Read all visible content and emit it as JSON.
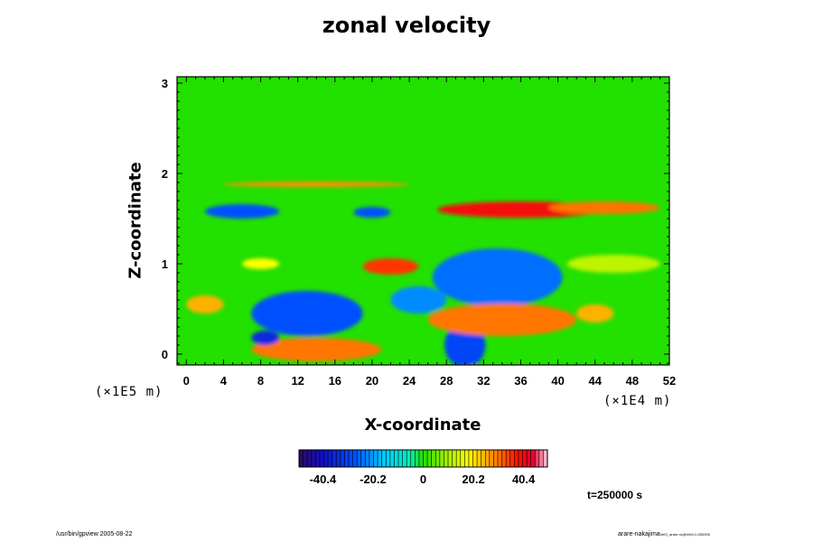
{
  "chart_data": {
    "type": "heatmap",
    "title": "zonal velocity",
    "xlabel": "X-coordinate",
    "ylabel": "Z-coordinate",
    "x_ticks": [
      "0",
      "4",
      "8",
      "12",
      "16",
      "20",
      "24",
      "28",
      "32",
      "36",
      "40",
      "44",
      "48",
      "52"
    ],
    "y_ticks": [
      "0",
      "1",
      "2",
      "3"
    ],
    "xlim": [
      -1,
      52
    ],
    "ylim": [
      -0.12,
      3.07
    ],
    "x_scale_note": "(×1E4 m)",
    "y_scale_note": "(×1E5 m)",
    "colorbar": {
      "min": -50,
      "max": 50,
      "tick_labels": [
        "-40.4",
        "-20.2",
        "0",
        "20.2",
        "40.4"
      ],
      "tick_values": [
        -40.4,
        -20.2,
        0,
        20.2,
        40.4
      ]
    },
    "features": [
      {
        "x": 14,
        "z": 0.02,
        "rx": 5,
        "rz": 0.07,
        "value": 55
      },
      {
        "x": 14,
        "z": 0.05,
        "rx": 7,
        "rz": 0.13,
        "value": 30
      },
      {
        "x": 33.5,
        "z": 0.82,
        "rx": 3.5,
        "rz": 0.18,
        "value": -55
      },
      {
        "x": 33.5,
        "z": 0.85,
        "rx": 7,
        "rz": 0.32,
        "value": -25
      },
      {
        "x": 30.2,
        "z": -0.05,
        "rx": 1.1,
        "rz": 0.14,
        "value": -55
      },
      {
        "x": 30,
        "z": 0.1,
        "rx": 2.2,
        "rz": 0.25,
        "value": -30
      },
      {
        "x": 34,
        "z": 0.35,
        "rx": 6,
        "rz": 0.1,
        "value": 50
      },
      {
        "x": 34,
        "z": 0.38,
        "rx": 8,
        "rz": 0.18,
        "value": 30
      },
      {
        "x": 36,
        "z": 1.6,
        "rx": 9,
        "rz": 0.09,
        "value": 40
      },
      {
        "x": 45,
        "z": 1.62,
        "rx": 6,
        "rz": 0.07,
        "value": 30
      },
      {
        "x": 22,
        "z": 0.97,
        "rx": 3,
        "rz": 0.09,
        "value": 35
      },
      {
        "x": 13,
        "z": 0.45,
        "rx": 6,
        "rz": 0.25,
        "value": -28
      },
      {
        "x": 8.5,
        "z": 0.18,
        "rx": 1.5,
        "rz": 0.08,
        "value": -35
      },
      {
        "x": 6,
        "z": 1.58,
        "rx": 4,
        "rz": 0.08,
        "value": -28
      },
      {
        "x": 20,
        "z": 1.57,
        "rx": 2,
        "rz": 0.06,
        "value": -28
      },
      {
        "x": 25,
        "z": 0.6,
        "rx": 3,
        "rz": 0.15,
        "value": -22
      },
      {
        "x": 44,
        "z": 0.45,
        "rx": 2,
        "rz": 0.1,
        "value": 25
      },
      {
        "x": 8,
        "z": 1.0,
        "rx": 2,
        "rz": 0.06,
        "value": 18
      },
      {
        "x": 14,
        "z": 1.88,
        "rx": 10,
        "rz": 0.03,
        "value": 28
      },
      {
        "x": 2,
        "z": 0.55,
        "rx": 2,
        "rz": 0.1,
        "value": 25
      },
      {
        "x": 46,
        "z": 1.0,
        "rx": 5,
        "rz": 0.1,
        "value": 12
      }
    ]
  },
  "time_label": "t=250000 s",
  "footer": {
    "left": "/usr/bin/gpview 2005-08-22",
    "right_main": "arare-nakajima",
    "right_small": "VelX_arare.nc@VelX,t=250000"
  },
  "colors": {
    "background": "#ffffff",
    "zero_green": "#22e000"
  }
}
